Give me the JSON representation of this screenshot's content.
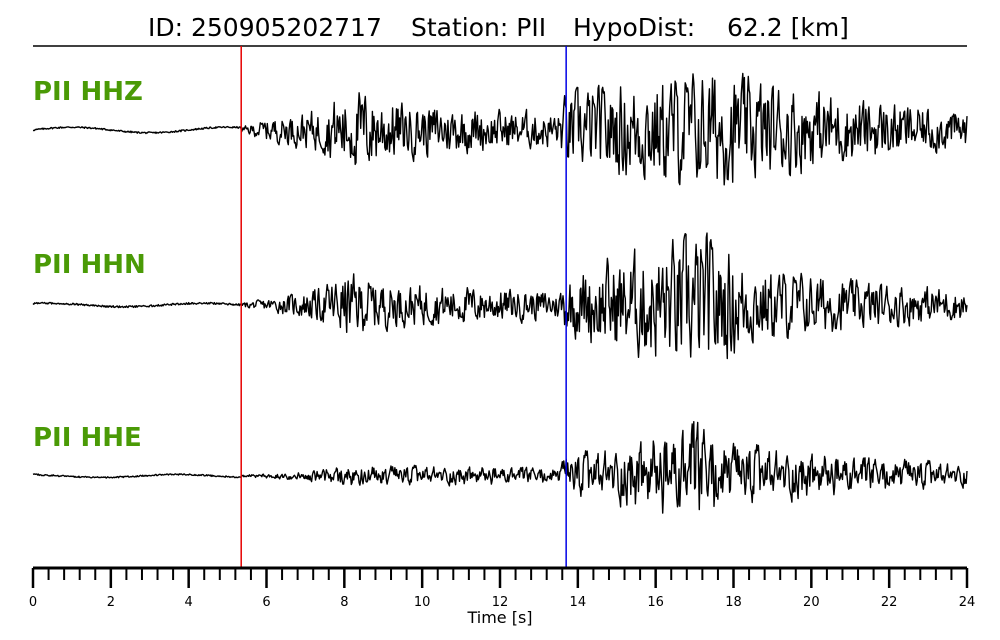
{
  "title": {
    "id": "ID: 250905202717",
    "station": "Station: PII",
    "hypodist": "HypoDist:    62.2 [km]"
  },
  "colors": {
    "p_pick": "#e60000",
    "s_pick": "#0000e6",
    "trace": "#000000",
    "channel_label": "#4a9a06"
  },
  "chart_data": {
    "type": "line",
    "xlabel": "Time [s]",
    "xlim": [
      0,
      24
    ],
    "x_ticks": [
      0,
      2,
      4,
      6,
      8,
      10,
      12,
      14,
      16,
      18,
      20,
      22,
      24
    ],
    "x_tick_labels": [
      "0",
      "2",
      "4",
      "6",
      "8",
      "10",
      "12",
      "14",
      "16",
      "18",
      "20",
      "22",
      "24"
    ],
    "minor_tick_step": 0.4,
    "picks": [
      {
        "phase": "P",
        "time": 5.35,
        "color": "#e60000"
      },
      {
        "phase": "S",
        "time": 13.7,
        "color": "#0000e6"
      }
    ],
    "series": [
      {
        "name": "PII HHZ",
        "envelope": [
          [
            0,
            0.03
          ],
          [
            5.3,
            0.03
          ],
          [
            6,
            0.18
          ],
          [
            7.4,
            0.35
          ],
          [
            7.8,
            0.55
          ],
          [
            8.5,
            0.65
          ],
          [
            9.5,
            0.45
          ],
          [
            12,
            0.32
          ],
          [
            13.5,
            0.3
          ],
          [
            13.7,
            0.6
          ],
          [
            14.5,
            0.7
          ],
          [
            16,
            0.85
          ],
          [
            17.5,
            0.95
          ],
          [
            19.5,
            0.7
          ],
          [
            22,
            0.45
          ],
          [
            24,
            0.3
          ]
        ]
      },
      {
        "name": "PII HHN",
        "envelope": [
          [
            0,
            0.03
          ],
          [
            5.3,
            0.03
          ],
          [
            6,
            0.08
          ],
          [
            7.4,
            0.25
          ],
          [
            8,
            0.45
          ],
          [
            9.5,
            0.3
          ],
          [
            13.5,
            0.2
          ],
          [
            13.7,
            0.4
          ],
          [
            14.5,
            0.6
          ],
          [
            16.5,
            0.9
          ],
          [
            17.3,
            1.0
          ],
          [
            18.5,
            0.55
          ],
          [
            21,
            0.35
          ],
          [
            24,
            0.22
          ]
        ]
      },
      {
        "name": "PII HHE",
        "envelope": [
          [
            0,
            0.02
          ],
          [
            5.3,
            0.02
          ],
          [
            7,
            0.08
          ],
          [
            8,
            0.18
          ],
          [
            12,
            0.16
          ],
          [
            13.5,
            0.15
          ],
          [
            13.7,
            0.35
          ],
          [
            15,
            0.5
          ],
          [
            16.5,
            0.8
          ],
          [
            17,
            1.0
          ],
          [
            18,
            0.55
          ],
          [
            20,
            0.4
          ],
          [
            24,
            0.2
          ]
        ]
      }
    ]
  }
}
